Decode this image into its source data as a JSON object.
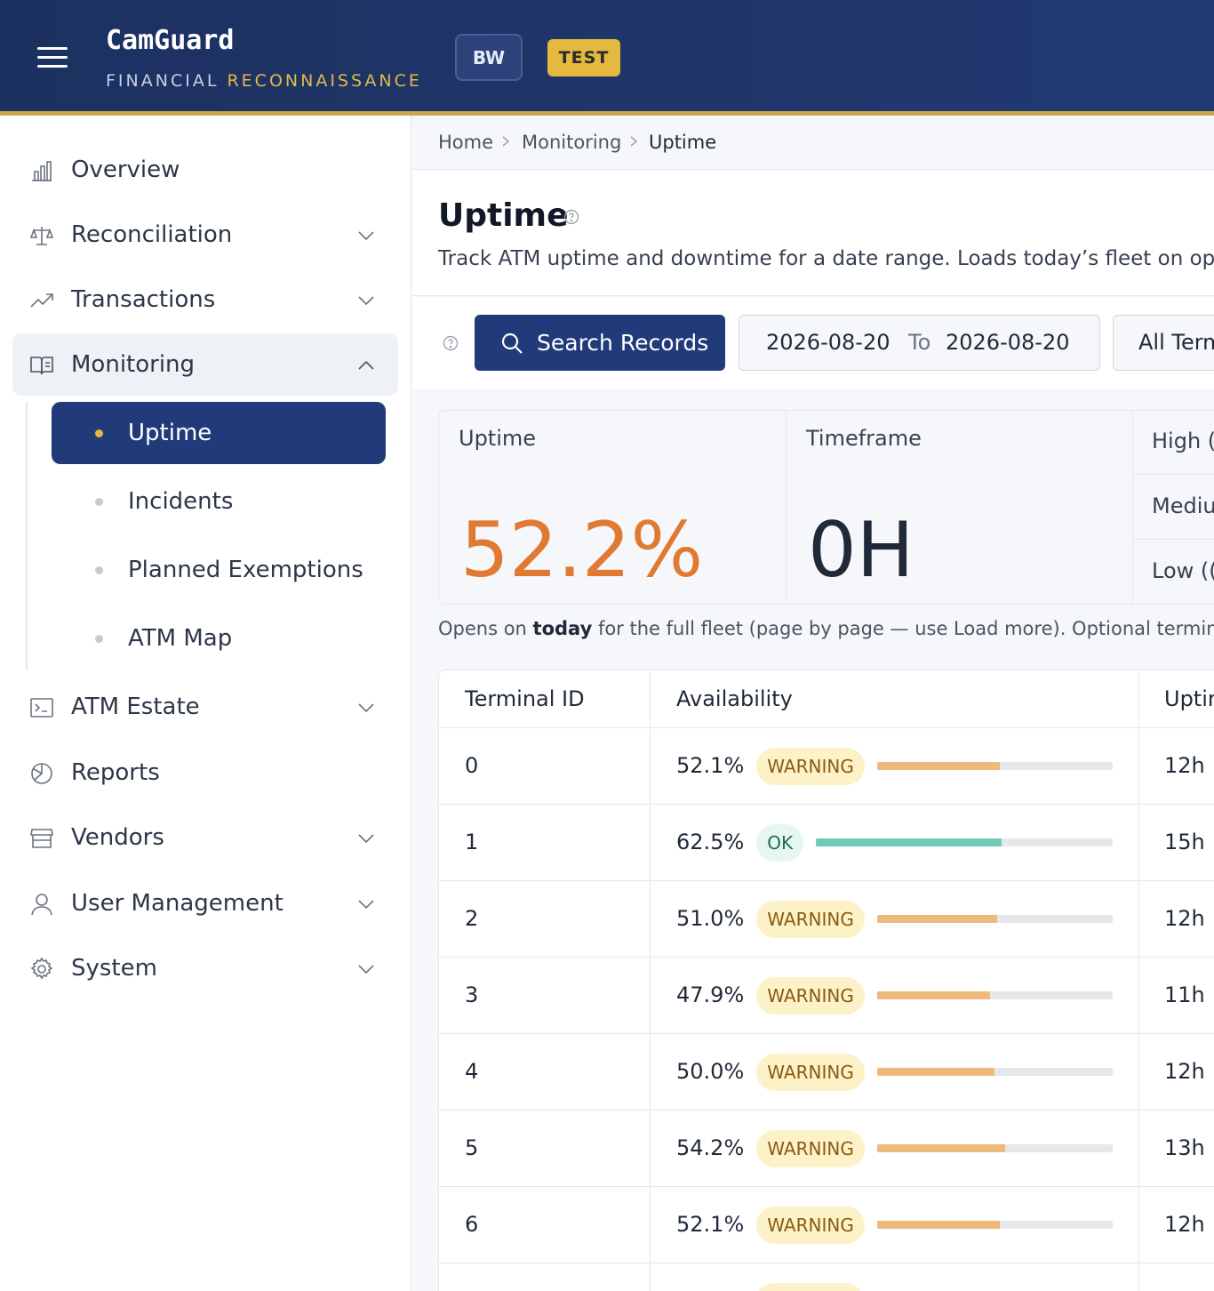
{
  "header": {
    "brand_title": "CamGuard",
    "brand_sub_white": "FINANCIAL",
    "brand_sub_gold": "RECONNAISSANCE",
    "country_pill": "BW",
    "env_pill": "TEST",
    "accent_gold": "#e5b840",
    "brand_navy": "#213a7a"
  },
  "sidebar": {
    "items": [
      {
        "label": "Overview",
        "icon": "bar-chart-icon",
        "has_chevron": false
      },
      {
        "label": "Reconciliation",
        "icon": "scale-icon",
        "has_chevron": true
      },
      {
        "label": "Transactions",
        "icon": "trend-up-icon",
        "has_chevron": true
      },
      {
        "label": "Monitoring",
        "icon": "book-icon",
        "has_chevron": true,
        "expanded": true
      },
      {
        "label": "ATM Estate",
        "icon": "terminal-icon",
        "has_chevron": true
      },
      {
        "label": "Reports",
        "icon": "pie-chart-icon",
        "has_chevron": false
      },
      {
        "label": "Vendors",
        "icon": "store-icon",
        "has_chevron": true
      },
      {
        "label": "User Management",
        "icon": "user-icon",
        "has_chevron": true
      },
      {
        "label": "System",
        "icon": "gear-icon",
        "has_chevron": true
      }
    ],
    "monitoring_sub": [
      {
        "label": "Uptime",
        "active": true
      },
      {
        "label": "Incidents",
        "active": false
      },
      {
        "label": "Planned Exemptions",
        "active": false
      },
      {
        "label": "ATM Map",
        "active": false
      }
    ]
  },
  "breadcrumb": [
    "Home",
    "Monitoring",
    "Uptime"
  ],
  "page": {
    "title": "Uptime",
    "description": "Track ATM uptime and downtime for a date range. Loads today’s fleet on op"
  },
  "toolbar": {
    "search_label": "Search Records",
    "date_from": "2026-08-20",
    "date_to_word": "To",
    "date_to": "2026-08-20",
    "terminal_filter": "All Term"
  },
  "stats": {
    "uptime_label": "Uptime",
    "uptime_value": "52.2%",
    "uptime_color": "#e07a32",
    "timeframe_label": "Timeframe",
    "timeframe_value": "0H",
    "severity": [
      "High (",
      "Mediu",
      "Low (("
    ]
  },
  "note": {
    "prefix": "Opens on ",
    "bold": "today",
    "suffix": " for the full fleet (page by page — use Load more). Optional terminal, SC"
  },
  "table": {
    "headers": [
      "Terminal ID",
      "Availability",
      "Uptir"
    ],
    "rows": [
      {
        "id": "0",
        "pct": "52.1%",
        "status": "WARNING",
        "fraction": 0.521,
        "uptime": "12h :"
      },
      {
        "id": "1",
        "pct": "62.5%",
        "status": "OK",
        "fraction": 0.625,
        "uptime": "15h :"
      },
      {
        "id": "2",
        "pct": "51.0%",
        "status": "WARNING",
        "fraction": 0.51,
        "uptime": "12h :"
      },
      {
        "id": "3",
        "pct": "47.9%",
        "status": "WARNING",
        "fraction": 0.479,
        "uptime": "11h :"
      },
      {
        "id": "4",
        "pct": "50.0%",
        "status": "WARNING",
        "fraction": 0.5,
        "uptime": "12h :"
      },
      {
        "id": "5",
        "pct": "54.2%",
        "status": "WARNING",
        "fraction": 0.542,
        "uptime": "13h :"
      },
      {
        "id": "6",
        "pct": "52.1%",
        "status": "WARNING",
        "fraction": 0.521,
        "uptime": "12h :"
      },
      {
        "id": "",
        "pct": "",
        "status": "WARNING",
        "fraction": 0,
        "uptime": ""
      }
    ],
    "warn_bar_color": "#efb97c",
    "ok_bar_color": "#6fcbb5"
  }
}
